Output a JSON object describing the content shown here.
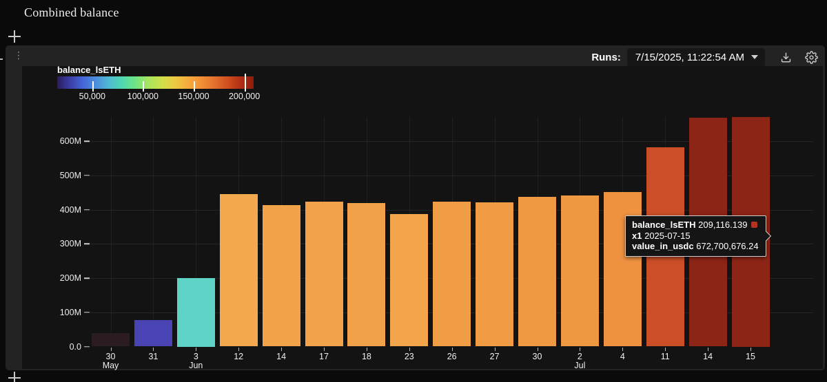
{
  "page": {
    "title": "Combined balance"
  },
  "panel": {
    "runs_label": "Runs:",
    "runs_value": "7/15/2025, 11:22:54 AM"
  },
  "legend": {
    "title": "balance_lsETH",
    "gradient_stops": [
      "#2b1c5e",
      "#3a3fa8",
      "#4568d8",
      "#4b8fdc",
      "#50bcd0",
      "#4ed9ae",
      "#72e482",
      "#a8e65c",
      "#cfe04a",
      "#eec943",
      "#f5ab3d",
      "#f19038",
      "#e4702c",
      "#d14f20",
      "#b22f14",
      "#8c1d0e"
    ],
    "ticks": [
      {
        "label": "50,000",
        "value": 50000
      },
      {
        "label": "100,000",
        "value": 100000
      },
      {
        "label": "150,000",
        "value": 150000
      },
      {
        "label": "200,000",
        "value": 200000
      }
    ]
  },
  "chart_data": {
    "type": "bar",
    "title": "Combined balance",
    "xlabel": "",
    "ylabel": "value_in_usdc",
    "ylim": [
      0,
      670000000
    ],
    "grid": true,
    "color_scale": {
      "name": "balance_lsETH",
      "min": 15500,
      "max": 209116.139
    },
    "yticks": [
      {
        "label": "0.0",
        "value": 0
      },
      {
        "label": "100M",
        "value": 100
      },
      {
        "label": "200M",
        "value": 200
      },
      {
        "label": "300M",
        "value": 300
      },
      {
        "label": "400M",
        "value": 400
      },
      {
        "label": "500M",
        "value": 500
      },
      {
        "label": "600M",
        "value": 600
      }
    ],
    "x": [
      {
        "day": "30",
        "month": "May"
      },
      {
        "day": "31",
        "month": ""
      },
      {
        "day": "3",
        "month": "Jun"
      },
      {
        "day": "12",
        "month": ""
      },
      {
        "day": "14",
        "month": ""
      },
      {
        "day": "17",
        "month": ""
      },
      {
        "day": "18",
        "month": ""
      },
      {
        "day": "23",
        "month": ""
      },
      {
        "day": "26",
        "month": ""
      },
      {
        "day": "27",
        "month": ""
      },
      {
        "day": "30",
        "month": ""
      },
      {
        "day": "2",
        "month": "Jul"
      },
      {
        "day": "4",
        "month": ""
      },
      {
        "day": "11",
        "month": ""
      },
      {
        "day": "14",
        "month": ""
      },
      {
        "day": "15",
        "month": ""
      }
    ],
    "series": [
      {
        "name": "value_in_usdc (millions)",
        "values": [
          40,
          78,
          200,
          446,
          414,
          423,
          420,
          387,
          424,
          422,
          437,
          442,
          452,
          581,
          668,
          672.7
        ]
      }
    ],
    "bar_colors": [
      "#2b1c21",
      "#4a43b4",
      "#5ed3c6",
      "#f4a84e",
      "#f2a34a",
      "#f2a24a",
      "#f1a149",
      "#f3a54c",
      "#f09d46",
      "#f09c45",
      "#ef9a43",
      "#ef9842",
      "#ee9240",
      "#cb4e26",
      "#8d2516",
      "#8d2516"
    ]
  },
  "tooltip": {
    "rows": [
      {
        "label": "balance_lsETH",
        "value": "209,116.139",
        "swatch": "#b23320"
      },
      {
        "label": "x1",
        "value": "2025-07-15"
      },
      {
        "label": "value_in_usdc",
        "value": "672,700,676.24"
      }
    ]
  }
}
